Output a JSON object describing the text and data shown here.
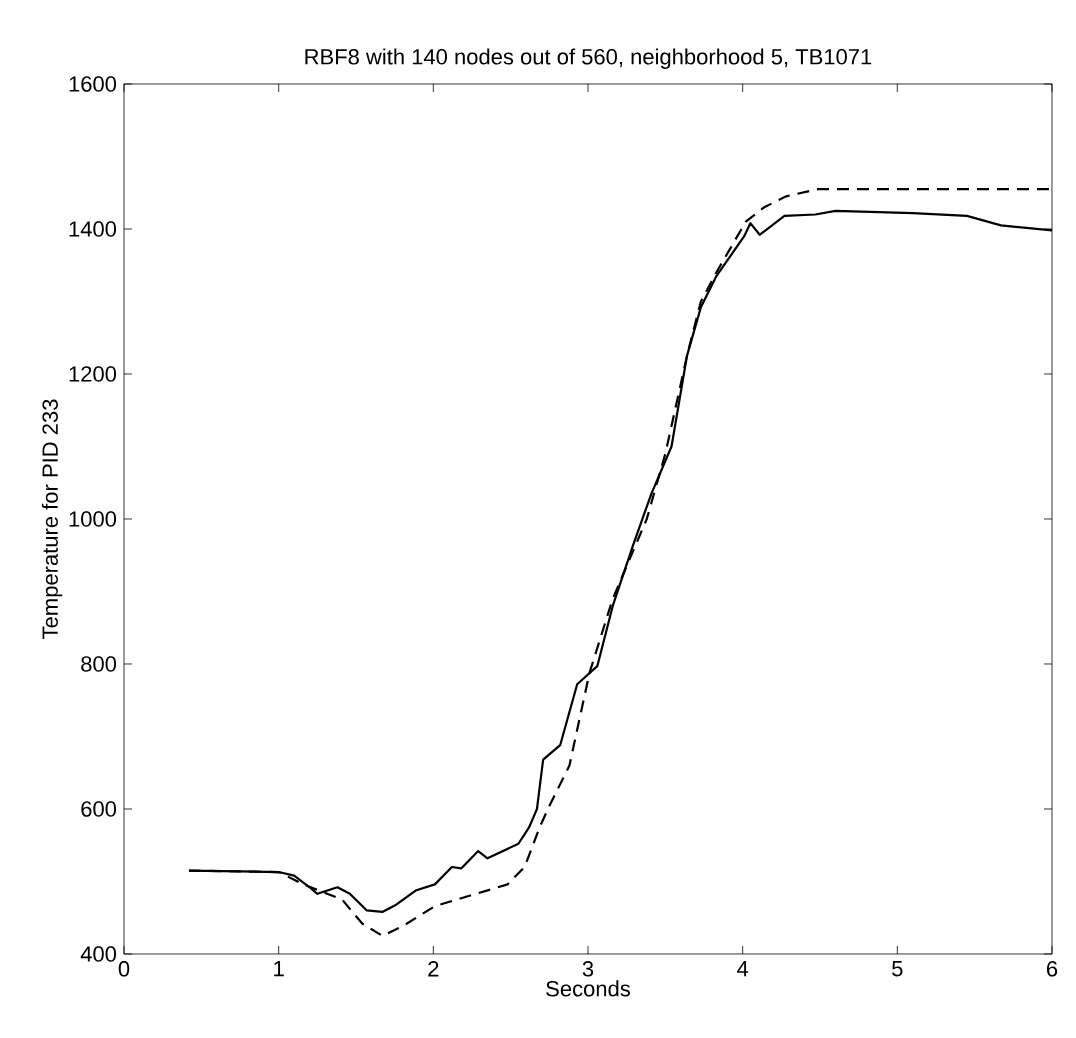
{
  "chart_data": {
    "type": "line",
    "title": "RBF8 with 140 nodes out of 560, neighborhood 5, TB1071",
    "xlabel": "Seconds",
    "ylabel": "Temperature for PID 233",
    "xlim": [
      0,
      6
    ],
    "ylim": [
      400,
      1600
    ],
    "xticks": [
      0,
      1,
      2,
      3,
      4,
      5,
      6
    ],
    "yticks": [
      400,
      600,
      800,
      1000,
      1200,
      1400,
      1600
    ],
    "series": [
      {
        "color": "#000000",
        "line_style": "solid",
        "x": [
          0.42,
          1.0,
          1.1,
          1.2,
          1.25,
          1.38,
          1.46,
          1.57,
          1.67,
          1.76,
          1.89,
          2.01,
          2.12,
          2.18,
          2.29,
          2.35,
          2.55,
          2.62,
          2.67,
          2.71,
          2.82,
          2.93,
          3.06,
          3.16,
          3.29,
          3.41,
          3.54,
          3.64,
          3.73,
          3.83,
          4.01,
          4.05,
          4.11,
          4.27,
          4.47,
          4.6,
          5.1,
          5.45,
          5.67,
          6.0
        ],
        "values": [
          515,
          513,
          508,
          492,
          483,
          492,
          483,
          460,
          458,
          468,
          488,
          496,
          520,
          518,
          542,
          532,
          552,
          575,
          600,
          668,
          688,
          772,
          797,
          880,
          963,
          1035,
          1100,
          1225,
          1292,
          1335,
          1390,
          1408,
          1392,
          1418,
          1420,
          1425,
          1422,
          1418,
          1405,
          1398
        ]
      },
      {
        "color": "#000000",
        "line_style": "dashed",
        "x": [
          0.42,
          1.0,
          1.16,
          1.41,
          1.54,
          1.67,
          1.8,
          2.01,
          2.48,
          2.59,
          2.69,
          2.75,
          2.88,
          3.01,
          3.16,
          3.38,
          3.5,
          3.64,
          3.73,
          3.83,
          4.02,
          4.14,
          4.28,
          4.49,
          4.87,
          6.0
        ],
        "values": [
          515,
          513,
          496,
          475,
          442,
          425,
          438,
          466,
          496,
          520,
          576,
          604,
          660,
          788,
          890,
          1000,
          1090,
          1225,
          1300,
          1340,
          1410,
          1430,
          1445,
          1455,
          1455,
          1455
        ]
      }
    ]
  }
}
